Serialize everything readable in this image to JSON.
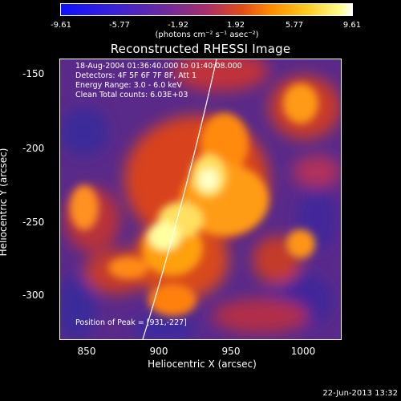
{
  "colorbar": {
    "ticks": [
      "-9.61",
      "-5.77",
      "-1.92",
      "1.92",
      "5.77",
      "9.61"
    ],
    "unit": "(photons cm⁻² s⁻¹ asec⁻²)"
  },
  "plot": {
    "title": "Reconstructed RHESSI Image",
    "info_lines": [
      "18-Aug-2004 01:36:40.000 to 01:40:08.000",
      "Detectors: 4F 5F 6F 7F 8F, Att 1",
      "Energy Range: 3.0 - 6.0 keV",
      "Clean     Total counts: 6.03E+03"
    ],
    "peak_label": "Position of Peak = [931,-227]",
    "x_axis": {
      "label": "Heliocentric X (arcsec)",
      "ticks": [
        "850",
        "900",
        "950",
        "1000"
      ]
    },
    "y_axis": {
      "label": "Heliocentric Y (arcsec)",
      "ticks": [
        "-150",
        "-200",
        "-250",
        "-300"
      ]
    }
  },
  "timestamp": "22-Jun-2013 13:32"
}
